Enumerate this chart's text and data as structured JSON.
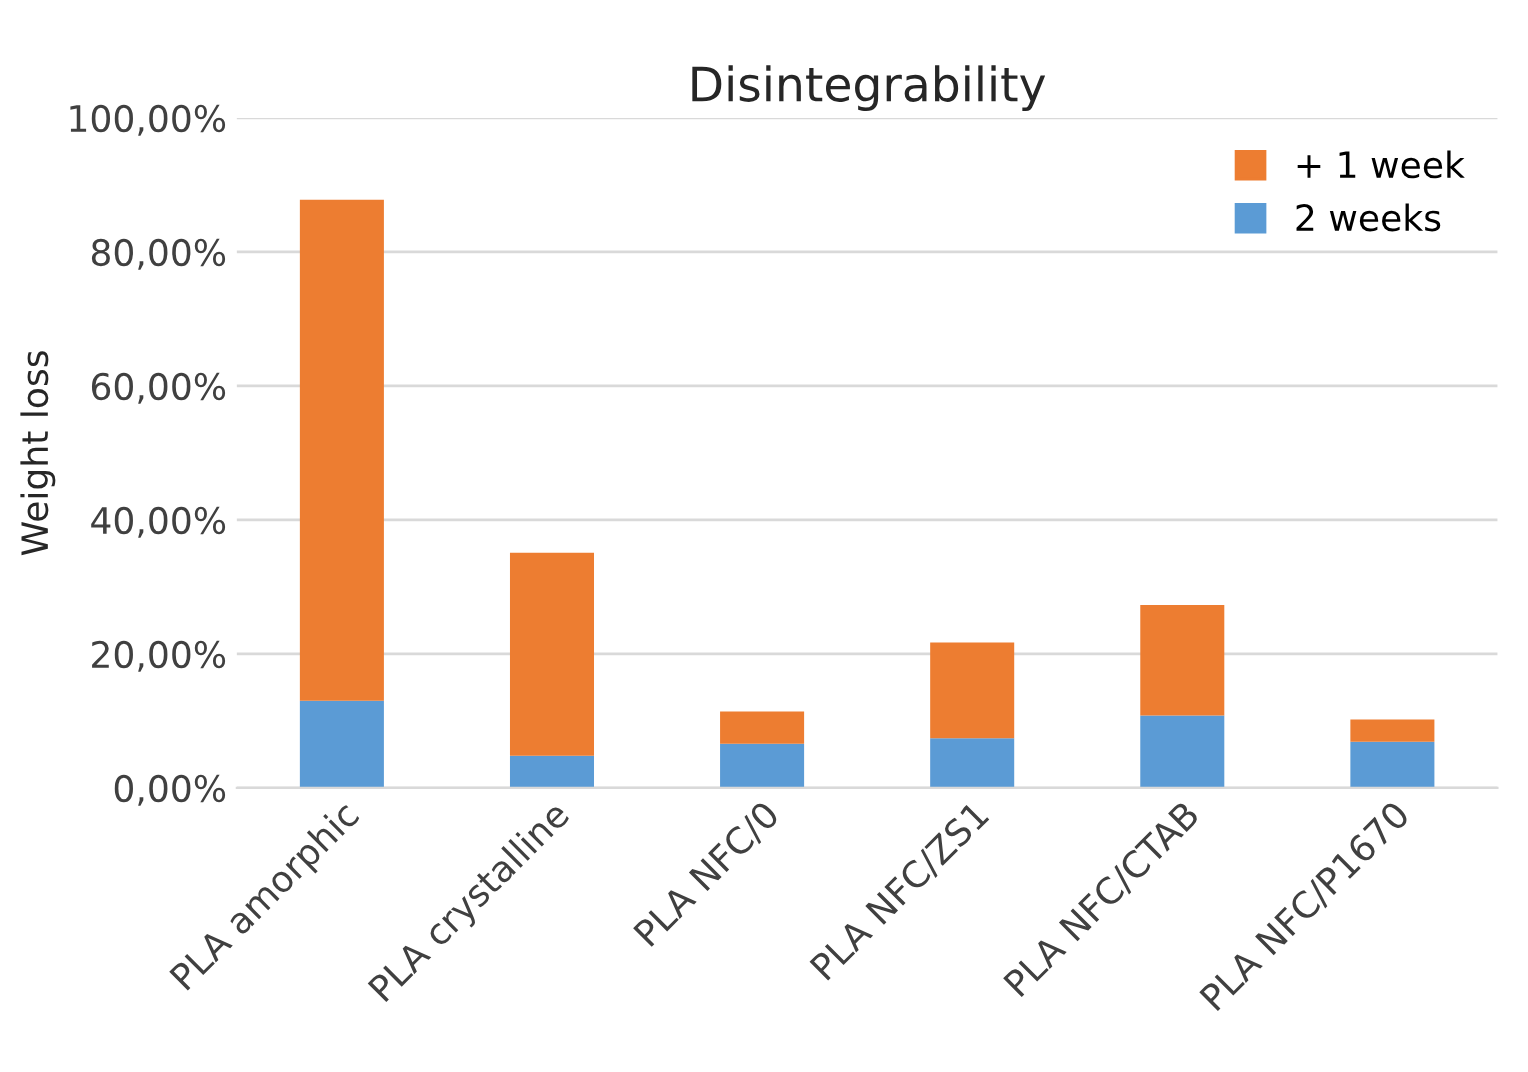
{
  "chart_data": {
    "type": "bar",
    "title": "Disintegrability",
    "ylabel": "Weight loss",
    "stacked": true,
    "grid": "y",
    "legend": "top right",
    "categories": [
      "PLA amorphic",
      "PLA crystalline",
      "PLA NFC/0",
      "PLA NFC/ZS1",
      "PLA NFC/CTAB",
      "PLA NFC/P1670"
    ],
    "series": [
      {
        "name": "2 weeks",
        "color": "#5b9bd5",
        "values": [
          13.0,
          4.8,
          6.6,
          7.4,
          10.8,
          6.9
        ]
      },
      {
        "name": "+ 1 week",
        "color": "#ed7d31",
        "values": [
          74.8,
          30.3,
          4.8,
          14.3,
          16.5,
          3.3
        ]
      }
    ],
    "ylim": [
      0,
      100
    ],
    "yticks": [
      {
        "value": 0,
        "label": "0,00%"
      },
      {
        "value": 20,
        "label": "20,00%"
      },
      {
        "value": 40,
        "label": "40,00%"
      },
      {
        "value": 60,
        "label": "60,00%"
      },
      {
        "value": 80,
        "label": "80,00%"
      },
      {
        "value": 100,
        "label": "100,00%"
      }
    ]
  }
}
